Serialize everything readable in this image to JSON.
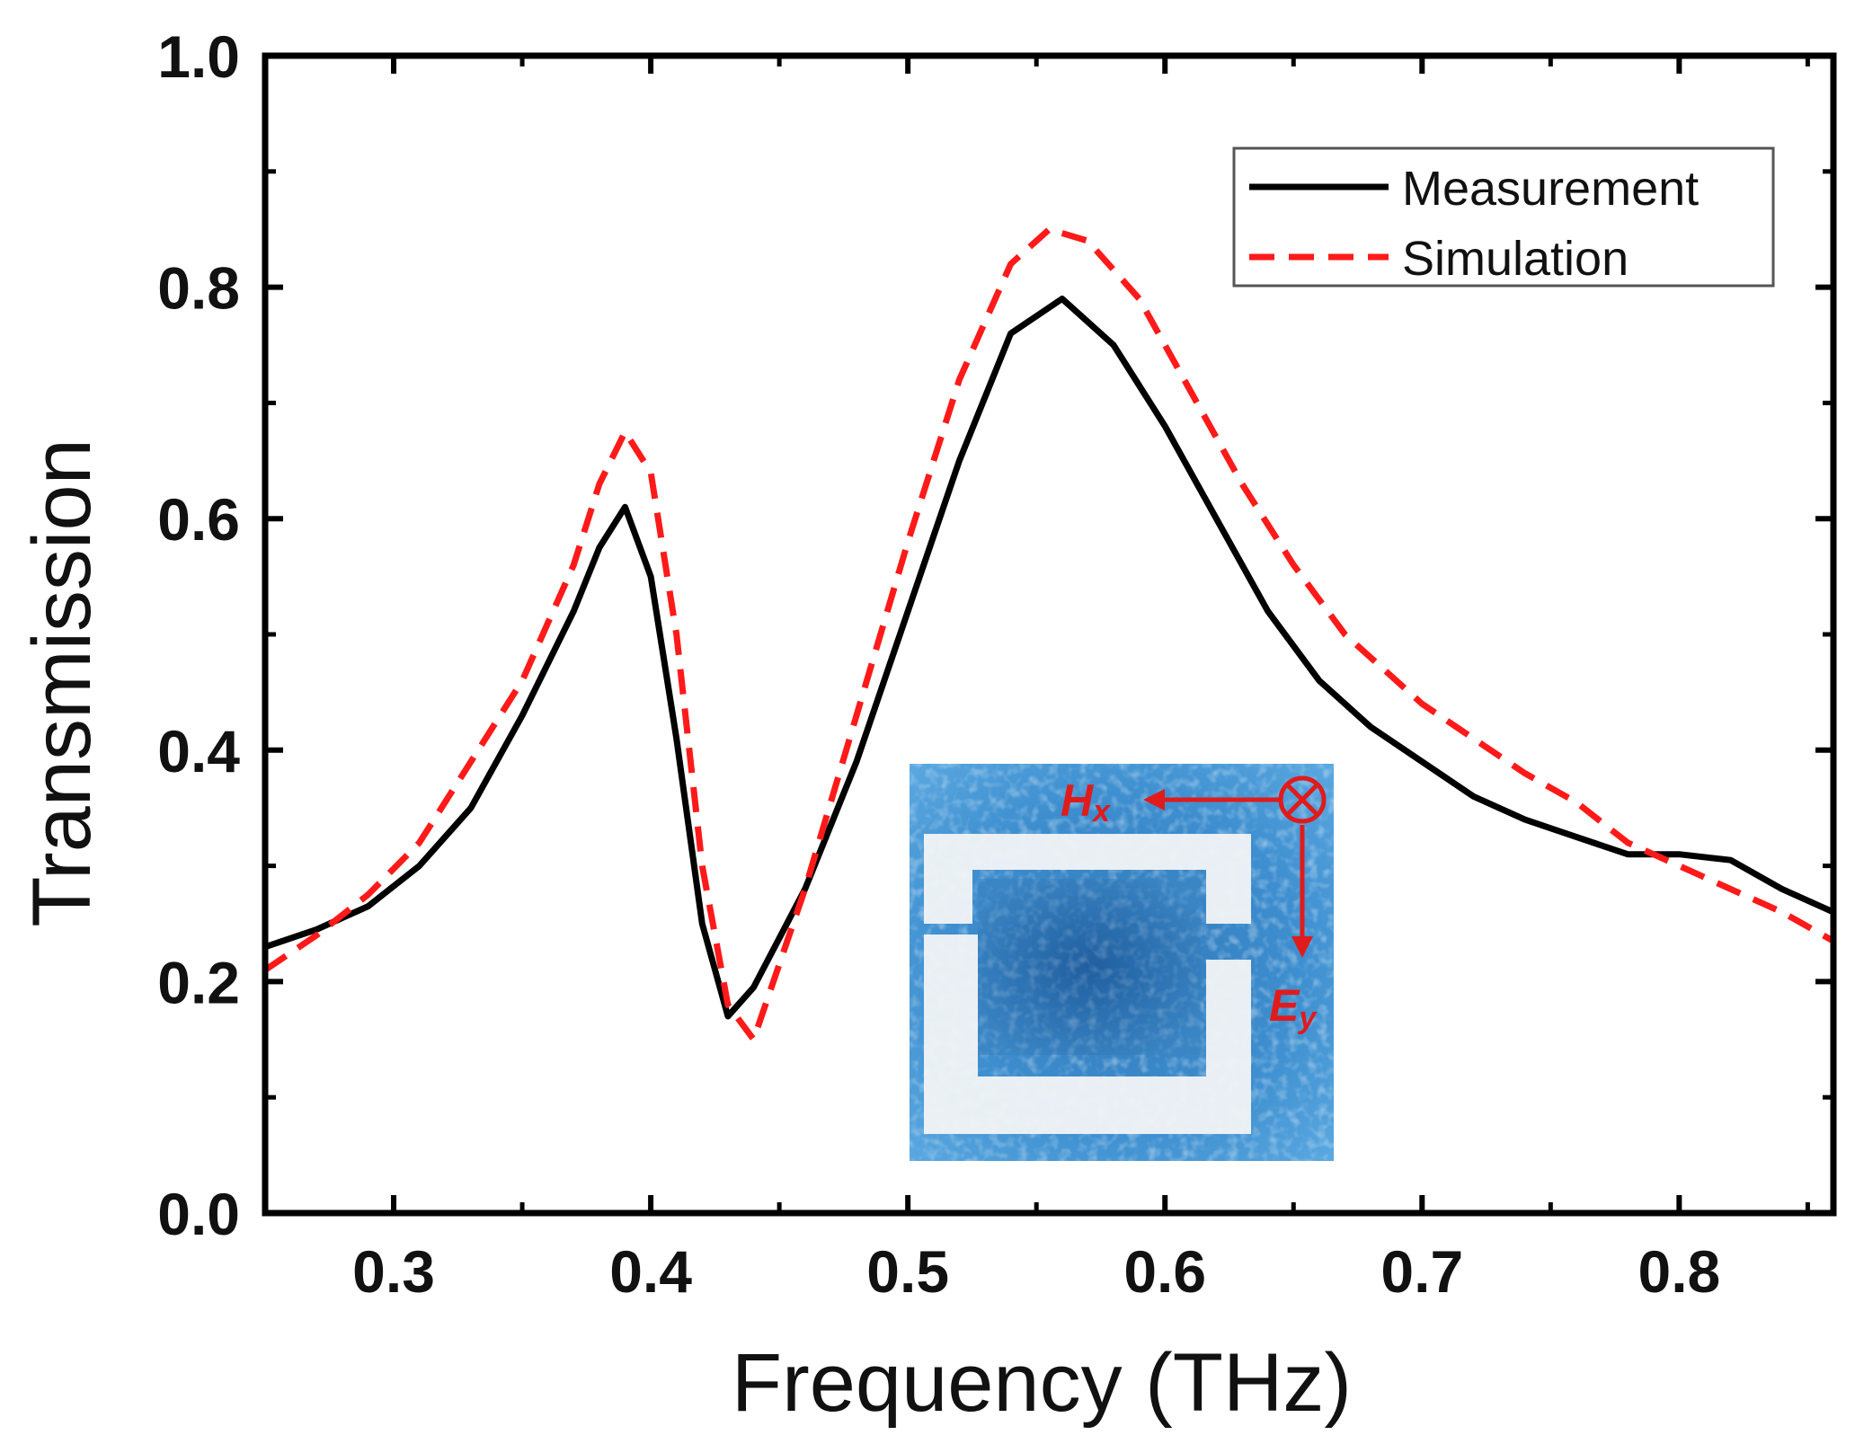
{
  "chart_data": {
    "type": "line",
    "xlabel": "Frequency (THz)",
    "ylabel": "Transmission",
    "xlim": [
      0.25,
      0.86
    ],
    "ylim": [
      0.0,
      1.0
    ],
    "xticks": [
      "0.3",
      "0.4",
      "0.5",
      "0.6",
      "0.7",
      "0.8"
    ],
    "xtick_values": [
      0.3,
      0.4,
      0.5,
      0.6,
      0.7,
      0.8
    ],
    "yticks": [
      "0.0",
      "0.2",
      "0.4",
      "0.6",
      "0.8",
      "1.0"
    ],
    "ytick_values": [
      0.0,
      0.2,
      0.4,
      0.6,
      0.8,
      1.0
    ],
    "legend_position": "top-right",
    "series": [
      {
        "name": "Measurement",
        "color": "#000000",
        "style": "solid",
        "x": [
          0.25,
          0.27,
          0.29,
          0.31,
          0.33,
          0.35,
          0.37,
          0.38,
          0.39,
          0.4,
          0.41,
          0.42,
          0.43,
          0.44,
          0.46,
          0.48,
          0.5,
          0.52,
          0.54,
          0.56,
          0.58,
          0.6,
          0.62,
          0.64,
          0.66,
          0.68,
          0.7,
          0.72,
          0.74,
          0.76,
          0.78,
          0.8,
          0.82,
          0.84,
          0.86
        ],
        "y": [
          0.23,
          0.245,
          0.265,
          0.3,
          0.35,
          0.43,
          0.52,
          0.575,
          0.61,
          0.55,
          0.41,
          0.25,
          0.17,
          0.195,
          0.28,
          0.39,
          0.52,
          0.65,
          0.76,
          0.79,
          0.75,
          0.68,
          0.6,
          0.52,
          0.46,
          0.42,
          0.39,
          0.36,
          0.34,
          0.325,
          0.31,
          0.31,
          0.305,
          0.28,
          0.26
        ]
      },
      {
        "name": "Simulation",
        "color": "#ff1a1a",
        "style": "dashed",
        "x": [
          0.25,
          0.27,
          0.29,
          0.31,
          0.33,
          0.35,
          0.37,
          0.38,
          0.39,
          0.4,
          0.41,
          0.42,
          0.43,
          0.44,
          0.46,
          0.48,
          0.5,
          0.52,
          0.54,
          0.555,
          0.57,
          0.59,
          0.61,
          0.63,
          0.65,
          0.67,
          0.7,
          0.72,
          0.74,
          0.76,
          0.78,
          0.8,
          0.82,
          0.84,
          0.86
        ],
        "y": [
          0.21,
          0.24,
          0.275,
          0.32,
          0.39,
          0.46,
          0.56,
          0.63,
          0.675,
          0.64,
          0.5,
          0.3,
          0.18,
          0.15,
          0.28,
          0.43,
          0.58,
          0.72,
          0.82,
          0.85,
          0.84,
          0.79,
          0.71,
          0.63,
          0.56,
          0.5,
          0.44,
          0.41,
          0.38,
          0.355,
          0.32,
          0.3,
          0.28,
          0.26,
          0.235
        ]
      }
    ],
    "inset": {
      "field_labels": [
        "H",
        "x",
        "E",
        "y"
      ],
      "arrow_color": "#e01b1b"
    }
  }
}
